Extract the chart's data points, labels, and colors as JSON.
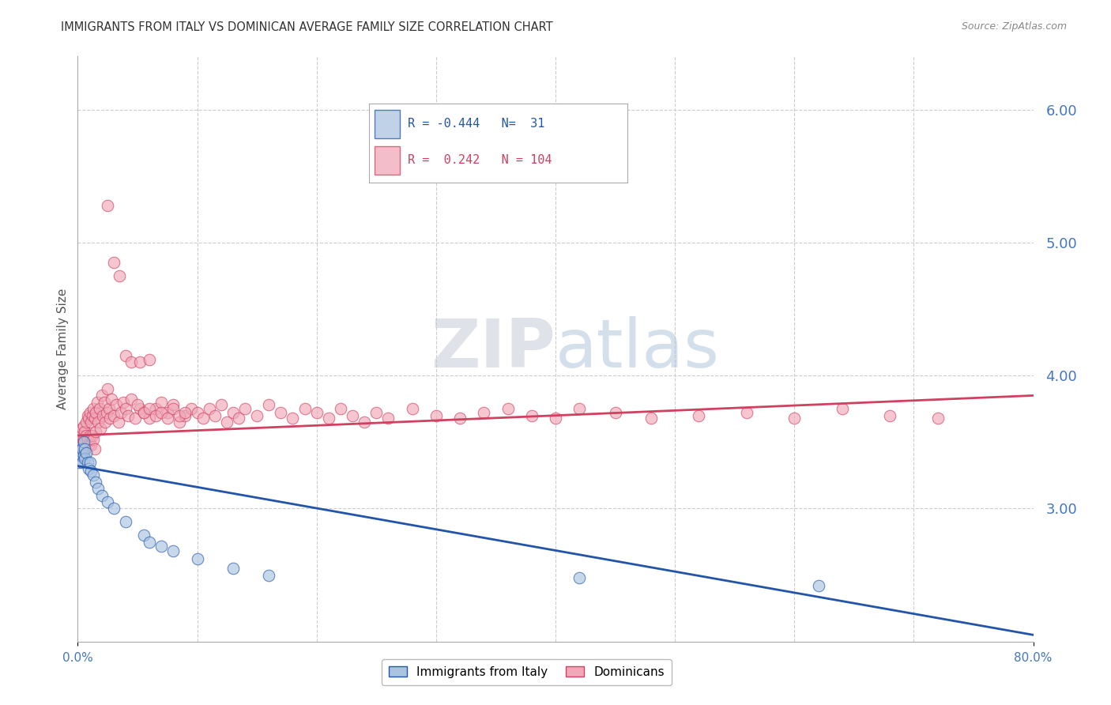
{
  "title": "IMMIGRANTS FROM ITALY VS DOMINICAN AVERAGE FAMILY SIZE CORRELATION CHART",
  "source": "Source: ZipAtlas.com",
  "ylabel": "Average Family Size",
  "italy_color": "#aac4e0",
  "dominican_color": "#f0a8b8",
  "italy_line_color": "#2255aa",
  "dominican_line_color": "#d04060",
  "italy_r": -0.444,
  "italy_n": 31,
  "dominican_r": 0.242,
  "dominican_n": 104,
  "legend_italy_label": "Immigrants from Italy",
  "legend_dominican_label": "Dominicans",
  "xmin": 0.0,
  "xmax": 0.8,
  "ymin": 2.0,
  "ymax": 6.4,
  "yticks": [
    3.0,
    4.0,
    5.0,
    6.0
  ],
  "background_color": "#ffffff",
  "grid_color": "#cccccc",
  "italy_x": [
    0.001,
    0.002,
    0.003,
    0.003,
    0.004,
    0.004,
    0.005,
    0.005,
    0.006,
    0.006,
    0.007,
    0.008,
    0.009,
    0.01,
    0.011,
    0.013,
    0.015,
    0.017,
    0.02,
    0.025,
    0.03,
    0.04,
    0.055,
    0.06,
    0.07,
    0.08,
    0.1,
    0.13,
    0.16,
    0.42,
    0.62
  ],
  "italy_y": [
    3.35,
    3.4,
    3.45,
    3.4,
    3.45,
    3.35,
    3.5,
    3.4,
    3.45,
    3.38,
    3.42,
    3.35,
    3.3,
    3.35,
    3.28,
    3.25,
    3.2,
    3.15,
    3.1,
    3.05,
    3.0,
    2.9,
    2.8,
    2.75,
    2.72,
    2.68,
    2.62,
    2.55,
    2.5,
    2.48,
    2.42
  ],
  "dominican_x": [
    0.002,
    0.003,
    0.004,
    0.004,
    0.005,
    0.005,
    0.006,
    0.006,
    0.007,
    0.007,
    0.008,
    0.008,
    0.009,
    0.009,
    0.01,
    0.01,
    0.011,
    0.011,
    0.012,
    0.012,
    0.013,
    0.013,
    0.014,
    0.014,
    0.015,
    0.015,
    0.016,
    0.017,
    0.018,
    0.019,
    0.02,
    0.021,
    0.022,
    0.023,
    0.024,
    0.025,
    0.026,
    0.027,
    0.028,
    0.03,
    0.032,
    0.034,
    0.036,
    0.038,
    0.04,
    0.042,
    0.045,
    0.048,
    0.052,
    0.055,
    0.06,
    0.065,
    0.07,
    0.075,
    0.08,
    0.085,
    0.09,
    0.095,
    0.1,
    0.105,
    0.11,
    0.115,
    0.12,
    0.125,
    0.13,
    0.135,
    0.14,
    0.15,
    0.16,
    0.17,
    0.18,
    0.19,
    0.2,
    0.21,
    0.22,
    0.23,
    0.24,
    0.25,
    0.26,
    0.28,
    0.3,
    0.32,
    0.34,
    0.36,
    0.38,
    0.4,
    0.42,
    0.45,
    0.48,
    0.52,
    0.56,
    0.6,
    0.64,
    0.68,
    0.72,
    0.05,
    0.055,
    0.06,
    0.065,
    0.07,
    0.075,
    0.08,
    0.085,
    0.09
  ],
  "dominican_y": [
    3.5,
    3.55,
    3.6,
    3.48,
    3.62,
    3.52,
    3.58,
    3.45,
    3.65,
    3.55,
    3.7,
    3.52,
    3.68,
    3.48,
    3.72,
    3.55,
    3.65,
    3.48,
    3.7,
    3.55,
    3.75,
    3.52,
    3.68,
    3.45,
    3.72,
    3.58,
    3.8,
    3.65,
    3.75,
    3.6,
    3.85,
    3.7,
    3.8,
    3.65,
    3.72,
    3.9,
    3.75,
    3.68,
    3.82,
    3.7,
    3.78,
    3.65,
    3.72,
    3.8,
    3.75,
    3.7,
    3.82,
    3.68,
    3.75,
    3.72,
    3.68,
    3.75,
    3.8,
    3.72,
    3.78,
    3.65,
    3.7,
    3.75,
    3.72,
    3.68,
    3.75,
    3.7,
    3.78,
    3.65,
    3.72,
    3.68,
    3.75,
    3.7,
    3.78,
    3.72,
    3.68,
    3.75,
    3.72,
    3.68,
    3.75,
    3.7,
    3.65,
    3.72,
    3.68,
    3.75,
    3.7,
    3.68,
    3.72,
    3.75,
    3.7,
    3.68,
    3.75,
    3.72,
    3.68,
    3.7,
    3.72,
    3.68,
    3.75,
    3.7,
    3.68,
    3.78,
    3.72,
    3.75,
    3.7,
    3.72,
    3.68,
    3.75,
    3.7,
    3.72
  ],
  "dominican_outliers_x": [
    0.025,
    0.03,
    0.035,
    0.04,
    0.045,
    0.052,
    0.06
  ],
  "dominican_outliers_y": [
    5.28,
    4.85,
    4.75,
    4.15,
    4.1,
    4.1,
    4.12
  ],
  "italy_line_x0": 0.0,
  "italy_line_y0": 3.32,
  "italy_line_x1": 0.8,
  "italy_line_y1": 2.05,
  "dom_line_x0": 0.0,
  "dom_line_y0": 3.55,
  "dom_line_x1": 0.8,
  "dom_line_y1": 3.85
}
